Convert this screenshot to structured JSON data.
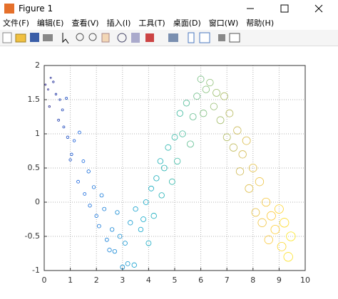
{
  "window": {
    "title": "Figure 1",
    "menu": [
      "文件(F)",
      "编辑(E)",
      "查看(V)",
      "插入(I)",
      "工具(T)",
      "桌面(D)",
      "窗口(W)",
      "帮助(H)"
    ]
  },
  "chart_data": {
    "type": "scatter",
    "x": [
      0.05,
      0.15,
      0.2,
      0.25,
      0.35,
      0.45,
      0.55,
      0.6,
      0.7,
      0.75,
      0.85,
      0.9,
      1.0,
      1.05,
      1.15,
      1.3,
      1.35,
      1.5,
      1.55,
      1.7,
      1.75,
      1.9,
      2.0,
      2.1,
      2.2,
      2.3,
      2.4,
      2.5,
      2.6,
      2.7,
      2.8,
      2.9,
      3.0,
      3.1,
      3.2,
      3.3,
      3.45,
      3.5,
      3.7,
      3.8,
      3.9,
      4.0,
      4.1,
      4.2,
      4.3,
      4.45,
      4.5,
      4.6,
      4.75,
      4.9,
      5.0,
      5.1,
      5.2,
      5.3,
      5.45,
      5.6,
      5.7,
      5.85,
      6.0,
      6.1,
      6.2,
      6.35,
      6.5,
      6.6,
      6.75,
      6.9,
      7.0,
      7.1,
      7.25,
      7.4,
      7.5,
      7.6,
      7.75,
      7.85,
      8.0,
      8.1,
      8.25,
      8.35,
      8.5,
      8.6,
      8.7,
      8.85,
      9.0,
      9.1,
      9.2,
      9.35,
      9.45
    ],
    "y": [
      1.72,
      1.65,
      1.4,
      1.82,
      1.76,
      1.58,
      1.2,
      1.5,
      1.35,
      1.1,
      1.52,
      0.95,
      0.62,
      0.7,
      0.9,
      0.3,
      1.02,
      0.6,
      0.12,
      0.45,
      -0.05,
      0.22,
      -0.2,
      -0.35,
      0.1,
      -0.1,
      -0.55,
      -0.7,
      -0.4,
      -0.72,
      -0.15,
      -0.5,
      -0.95,
      -0.6,
      -0.9,
      -0.3,
      -0.92,
      -0.1,
      -0.4,
      -0.25,
      0.0,
      -0.6,
      0.2,
      -0.2,
      0.35,
      0.6,
      0.1,
      0.5,
      0.8,
      0.3,
      0.95,
      0.6,
      1.3,
      1.0,
      1.45,
      0.85,
      1.25,
      1.55,
      1.8,
      1.3,
      1.65,
      1.75,
      1.4,
      1.6,
      1.2,
      1.55,
      0.95,
      1.3,
      0.8,
      1.05,
      0.45,
      0.7,
      0.9,
      0.2,
      0.5,
      -0.15,
      0.3,
      -0.3,
      0.0,
      -0.55,
      -0.2,
      -0.4,
      -0.1,
      -0.65,
      -0.3,
      -0.8,
      -0.5
    ],
    "sizes": [
      4,
      4,
      5,
      4,
      5,
      5,
      6,
      5,
      6,
      6,
      6,
      7,
      7,
      7,
      7,
      8,
      8,
      8,
      8,
      9,
      9,
      9,
      9,
      10,
      10,
      10,
      10,
      11,
      11,
      11,
      11,
      12,
      12,
      12,
      12,
      13,
      13,
      13,
      13,
      14,
      14,
      14,
      14,
      15,
      15,
      15,
      15,
      16,
      16,
      16,
      16,
      17,
      17,
      17,
      17,
      18,
      18,
      18,
      18,
      19,
      19,
      19,
      19,
      20,
      20,
      20,
      20,
      20,
      21,
      21,
      21,
      21,
      22,
      22,
      22,
      22,
      23,
      23,
      23,
      23,
      24,
      24,
      24,
      24,
      25,
      25,
      25
    ],
    "colormap": [
      "#352a87",
      "#0f5cdd",
      "#1481d6",
      "#06a4ca",
      "#2eb7a4",
      "#87bf77",
      "#d1bb59",
      "#fec832",
      "#f9fb0e"
    ],
    "xlim": [
      0,
      10
    ],
    "ylim": [
      -1,
      2
    ],
    "xticks": [
      0,
      1,
      2,
      3,
      4,
      5,
      6,
      7,
      8,
      9,
      10
    ],
    "yticks": [
      -1,
      -0.5,
      0,
      0.5,
      1,
      1.5,
      2
    ],
    "grid": true
  }
}
